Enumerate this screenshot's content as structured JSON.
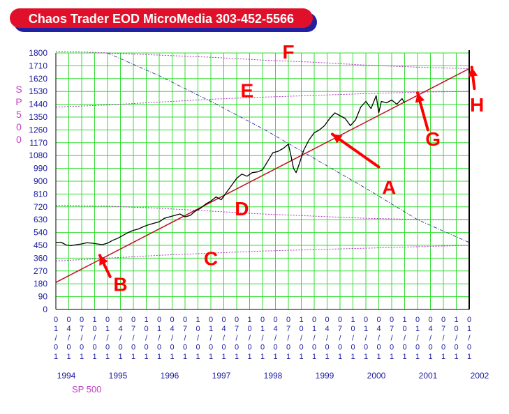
{
  "banner": {
    "title": "Chaos Trader EOD MicroMedia 303-452-5566"
  },
  "chart_data": {
    "type": "line",
    "ylabel_chars": [
      "S",
      "P",
      "5",
      "0",
      "0"
    ],
    "xlabel": "SP 500",
    "ylim": [
      0,
      1800
    ],
    "yticks": [
      0,
      90,
      180,
      270,
      360,
      450,
      540,
      630,
      720,
      810,
      900,
      990,
      1080,
      1170,
      1260,
      1350,
      1440,
      1530,
      1620,
      1710,
      1800
    ],
    "x_range": [
      1994.0,
      2002.0
    ],
    "month_digits": [
      [
        "0",
        "1",
        "/",
        "0",
        "1"
      ],
      [
        "0",
        "4",
        "/",
        "0",
        "1"
      ],
      [
        "0",
        "7",
        "/",
        "0",
        "1"
      ],
      [
        "1",
        "0",
        "/",
        "0",
        "1"
      ]
    ],
    "years": [
      "1994",
      "1995",
      "1996",
      "1997",
      "1998",
      "1999",
      "2000",
      "2001",
      "2002"
    ],
    "grid": true,
    "colors": {
      "grid": "#33dd33",
      "price": "#000000",
      "trend": "#c01020",
      "arcs": "#b030c0",
      "diagonal": "#4040a0",
      "annotation": "#ff0000",
      "axis_text": "#1a1aa0",
      "banner_fill": "#e0102a",
      "banner_shadow": "#2020a0"
    },
    "series": [
      {
        "values": [
          [
            1994.0,
            470
          ],
          [
            1994.1,
            472
          ],
          [
            1994.2,
            452
          ],
          [
            1994.3,
            448
          ],
          [
            1994.4,
            455
          ],
          [
            1994.5,
            460
          ],
          [
            1994.6,
            468
          ],
          [
            1994.7,
            465
          ],
          [
            1994.8,
            460
          ],
          [
            1994.9,
            455
          ],
          [
            1995.0,
            465
          ],
          [
            1995.1,
            485
          ],
          [
            1995.2,
            500
          ],
          [
            1995.3,
            520
          ],
          [
            1995.4,
            540
          ],
          [
            1995.5,
            555
          ],
          [
            1995.6,
            565
          ],
          [
            1995.7,
            582
          ],
          [
            1995.8,
            595
          ],
          [
            1995.9,
            605
          ],
          [
            1996.0,
            615
          ],
          [
            1996.1,
            640
          ],
          [
            1996.2,
            650
          ],
          [
            1996.3,
            660
          ],
          [
            1996.4,
            670
          ],
          [
            1996.5,
            650
          ],
          [
            1996.6,
            660
          ],
          [
            1996.7,
            690
          ],
          [
            1996.8,
            710
          ],
          [
            1996.9,
            740
          ],
          [
            1997.0,
            760
          ],
          [
            1997.1,
            790
          ],
          [
            1997.2,
            770
          ],
          [
            1997.3,
            820
          ],
          [
            1997.4,
            870
          ],
          [
            1997.5,
            920
          ],
          [
            1997.6,
            950
          ],
          [
            1997.7,
            935
          ],
          [
            1997.8,
            960
          ],
          [
            1997.9,
            965
          ],
          [
            1998.0,
            980
          ],
          [
            1998.1,
            1040
          ],
          [
            1998.2,
            1100
          ],
          [
            1998.3,
            1110
          ],
          [
            1998.4,
            1130
          ],
          [
            1998.5,
            1160
          ],
          [
            1998.55,
            1080
          ],
          [
            1998.6,
            990
          ],
          [
            1998.65,
            960
          ],
          [
            1998.7,
            1010
          ],
          [
            1998.8,
            1120
          ],
          [
            1998.9,
            1190
          ],
          [
            1999.0,
            1240
          ],
          [
            1999.1,
            1260
          ],
          [
            1999.2,
            1290
          ],
          [
            1999.3,
            1340
          ],
          [
            1999.4,
            1380
          ],
          [
            1999.5,
            1360
          ],
          [
            1999.6,
            1340
          ],
          [
            1999.7,
            1290
          ],
          [
            1999.8,
            1330
          ],
          [
            1999.9,
            1420
          ],
          [
            2000.0,
            1460
          ],
          [
            2000.1,
            1410
          ],
          [
            2000.2,
            1500
          ],
          [
            2000.25,
            1380
          ],
          [
            2000.3,
            1460
          ],
          [
            2000.4,
            1450
          ],
          [
            2000.5,
            1470
          ],
          [
            2000.6,
            1440
          ],
          [
            2000.7,
            1480
          ],
          [
            2000.75,
            1450
          ]
        ]
      }
    ],
    "trend_line": [
      [
        1994.0,
        190
      ],
      [
        2002.0,
        1690
      ]
    ],
    "curves": [
      {
        "style": "arc",
        "values": [
          [
            1994.0,
            1810
          ],
          [
            1994.5,
            1808
          ],
          [
            1995.0,
            1800
          ],
          [
            1996.0,
            1785
          ],
          [
            1997.0,
            1770
          ],
          [
            1998.0,
            1750
          ],
          [
            1999.0,
            1735
          ],
          [
            2000.0,
            1715
          ],
          [
            2001.0,
            1700
          ],
          [
            2002.0,
            1690
          ]
        ]
      },
      {
        "style": "arc",
        "values": [
          [
            1994.0,
            1420
          ],
          [
            1995.0,
            1435
          ],
          [
            1996.0,
            1455
          ],
          [
            1997.0,
            1475
          ],
          [
            1998.0,
            1490
          ],
          [
            1999.0,
            1502
          ],
          [
            2000.0,
            1515
          ],
          [
            2001.0,
            1525
          ],
          [
            2002.0,
            1530
          ]
        ]
      },
      {
        "style": "arc",
        "values": [
          [
            1994.0,
            730
          ],
          [
            1995.0,
            725
          ],
          [
            1996.0,
            710
          ],
          [
            1997.0,
            690
          ],
          [
            1998.0,
            670
          ],
          [
            1999.0,
            655
          ],
          [
            2000.0,
            640
          ],
          [
            2001.0,
            632
          ],
          [
            2002.0,
            630
          ]
        ]
      },
      {
        "style": "arc",
        "values": [
          [
            1994.0,
            340
          ],
          [
            1995.0,
            360
          ],
          [
            1996.0,
            380
          ],
          [
            1997.0,
            395
          ],
          [
            1998.0,
            410
          ],
          [
            1999.0,
            420
          ],
          [
            2000.0,
            430
          ],
          [
            2001.0,
            440
          ],
          [
            2002.0,
            450
          ]
        ]
      },
      {
        "style": "diagonal",
        "values": [
          [
            1995.0,
            1800
          ],
          [
            1996.0,
            1640
          ],
          [
            1997.0,
            1460
          ],
          [
            1998.0,
            1270
          ],
          [
            1999.0,
            1060
          ],
          [
            2000.0,
            850
          ],
          [
            2001.0,
            630
          ],
          [
            2002.0,
            470
          ]
        ]
      }
    ],
    "annotations": [
      {
        "label": "A",
        "pos": [
          2000.45,
          810
        ]
      },
      {
        "label": "B",
        "pos": [
          1995.25,
          130
        ]
      },
      {
        "label": "C",
        "pos": [
          1997.0,
          310
        ]
      },
      {
        "label": "D",
        "pos": [
          1997.6,
          660
        ]
      },
      {
        "label": "E",
        "pos": [
          1997.7,
          1490
        ]
      },
      {
        "label": "F",
        "pos": [
          1998.5,
          1760
        ]
      },
      {
        "label": "G",
        "pos": [
          2001.3,
          1150
        ]
      },
      {
        "label": "H",
        "pos": [
          2002.15,
          1390
        ]
      }
    ],
    "arrows": [
      {
        "from": [
          2000.25,
          1000
        ],
        "to": [
          1999.35,
          1230
        ]
      },
      {
        "from": [
          1995.05,
          230
        ],
        "to": [
          1994.85,
          380
        ]
      },
      {
        "from": [
          2001.2,
          1260
        ],
        "to": [
          2001.0,
          1520
        ]
      },
      {
        "from": [
          2002.1,
          1550
        ],
        "to": [
          2002.05,
          1700
        ]
      }
    ]
  }
}
